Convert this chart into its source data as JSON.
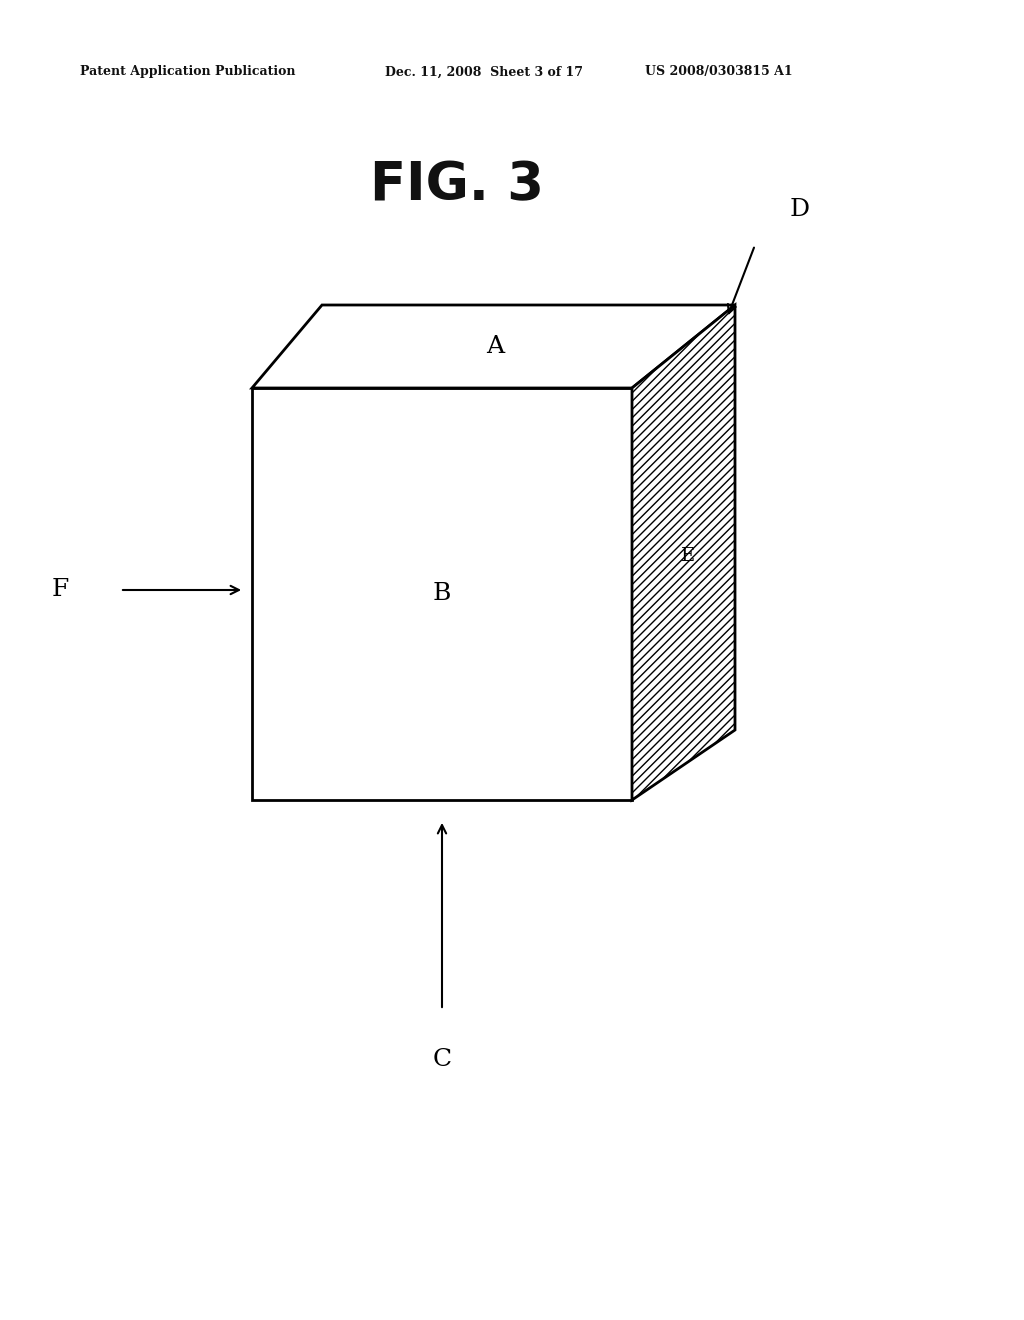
{
  "bg_color": "#ffffff",
  "header_left": "Patent Application Publication",
  "header_mid": "Dec. 11, 2008  Sheet 3 of 17",
  "header_right": "US 2008/0303815 A1",
  "fig_label": "FIG. 3",
  "label_A": "A",
  "label_B": "B",
  "label_C": "C",
  "label_D": "D",
  "label_E": "E",
  "label_F": "F",
  "line_width": 2.0,
  "hatch_pattern": "////",
  "header_fontsize": 9,
  "fig_fontsize": 38,
  "label_fontsize": 18
}
